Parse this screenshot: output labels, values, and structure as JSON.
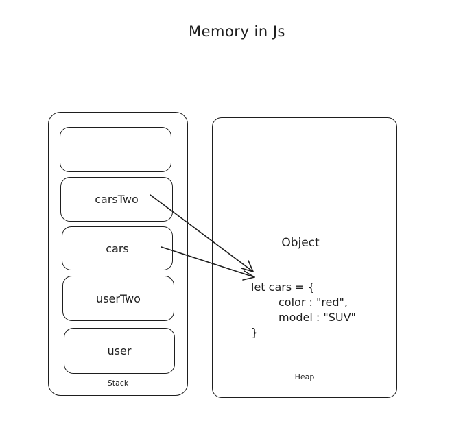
{
  "title": "Memory in Js",
  "stack": {
    "label": "Stack",
    "slots": [
      "carsTwo",
      "cars",
      "userTwo",
      "user"
    ]
  },
  "heap": {
    "label": "Heap",
    "object_label": "Object",
    "code_lines": [
      "let cars = {",
      "color : \"red\",",
      "model : \"SUV\"",
      "}"
    ]
  },
  "colors": {
    "stroke": "#1e1e1e",
    "background": "#ffffff"
  }
}
